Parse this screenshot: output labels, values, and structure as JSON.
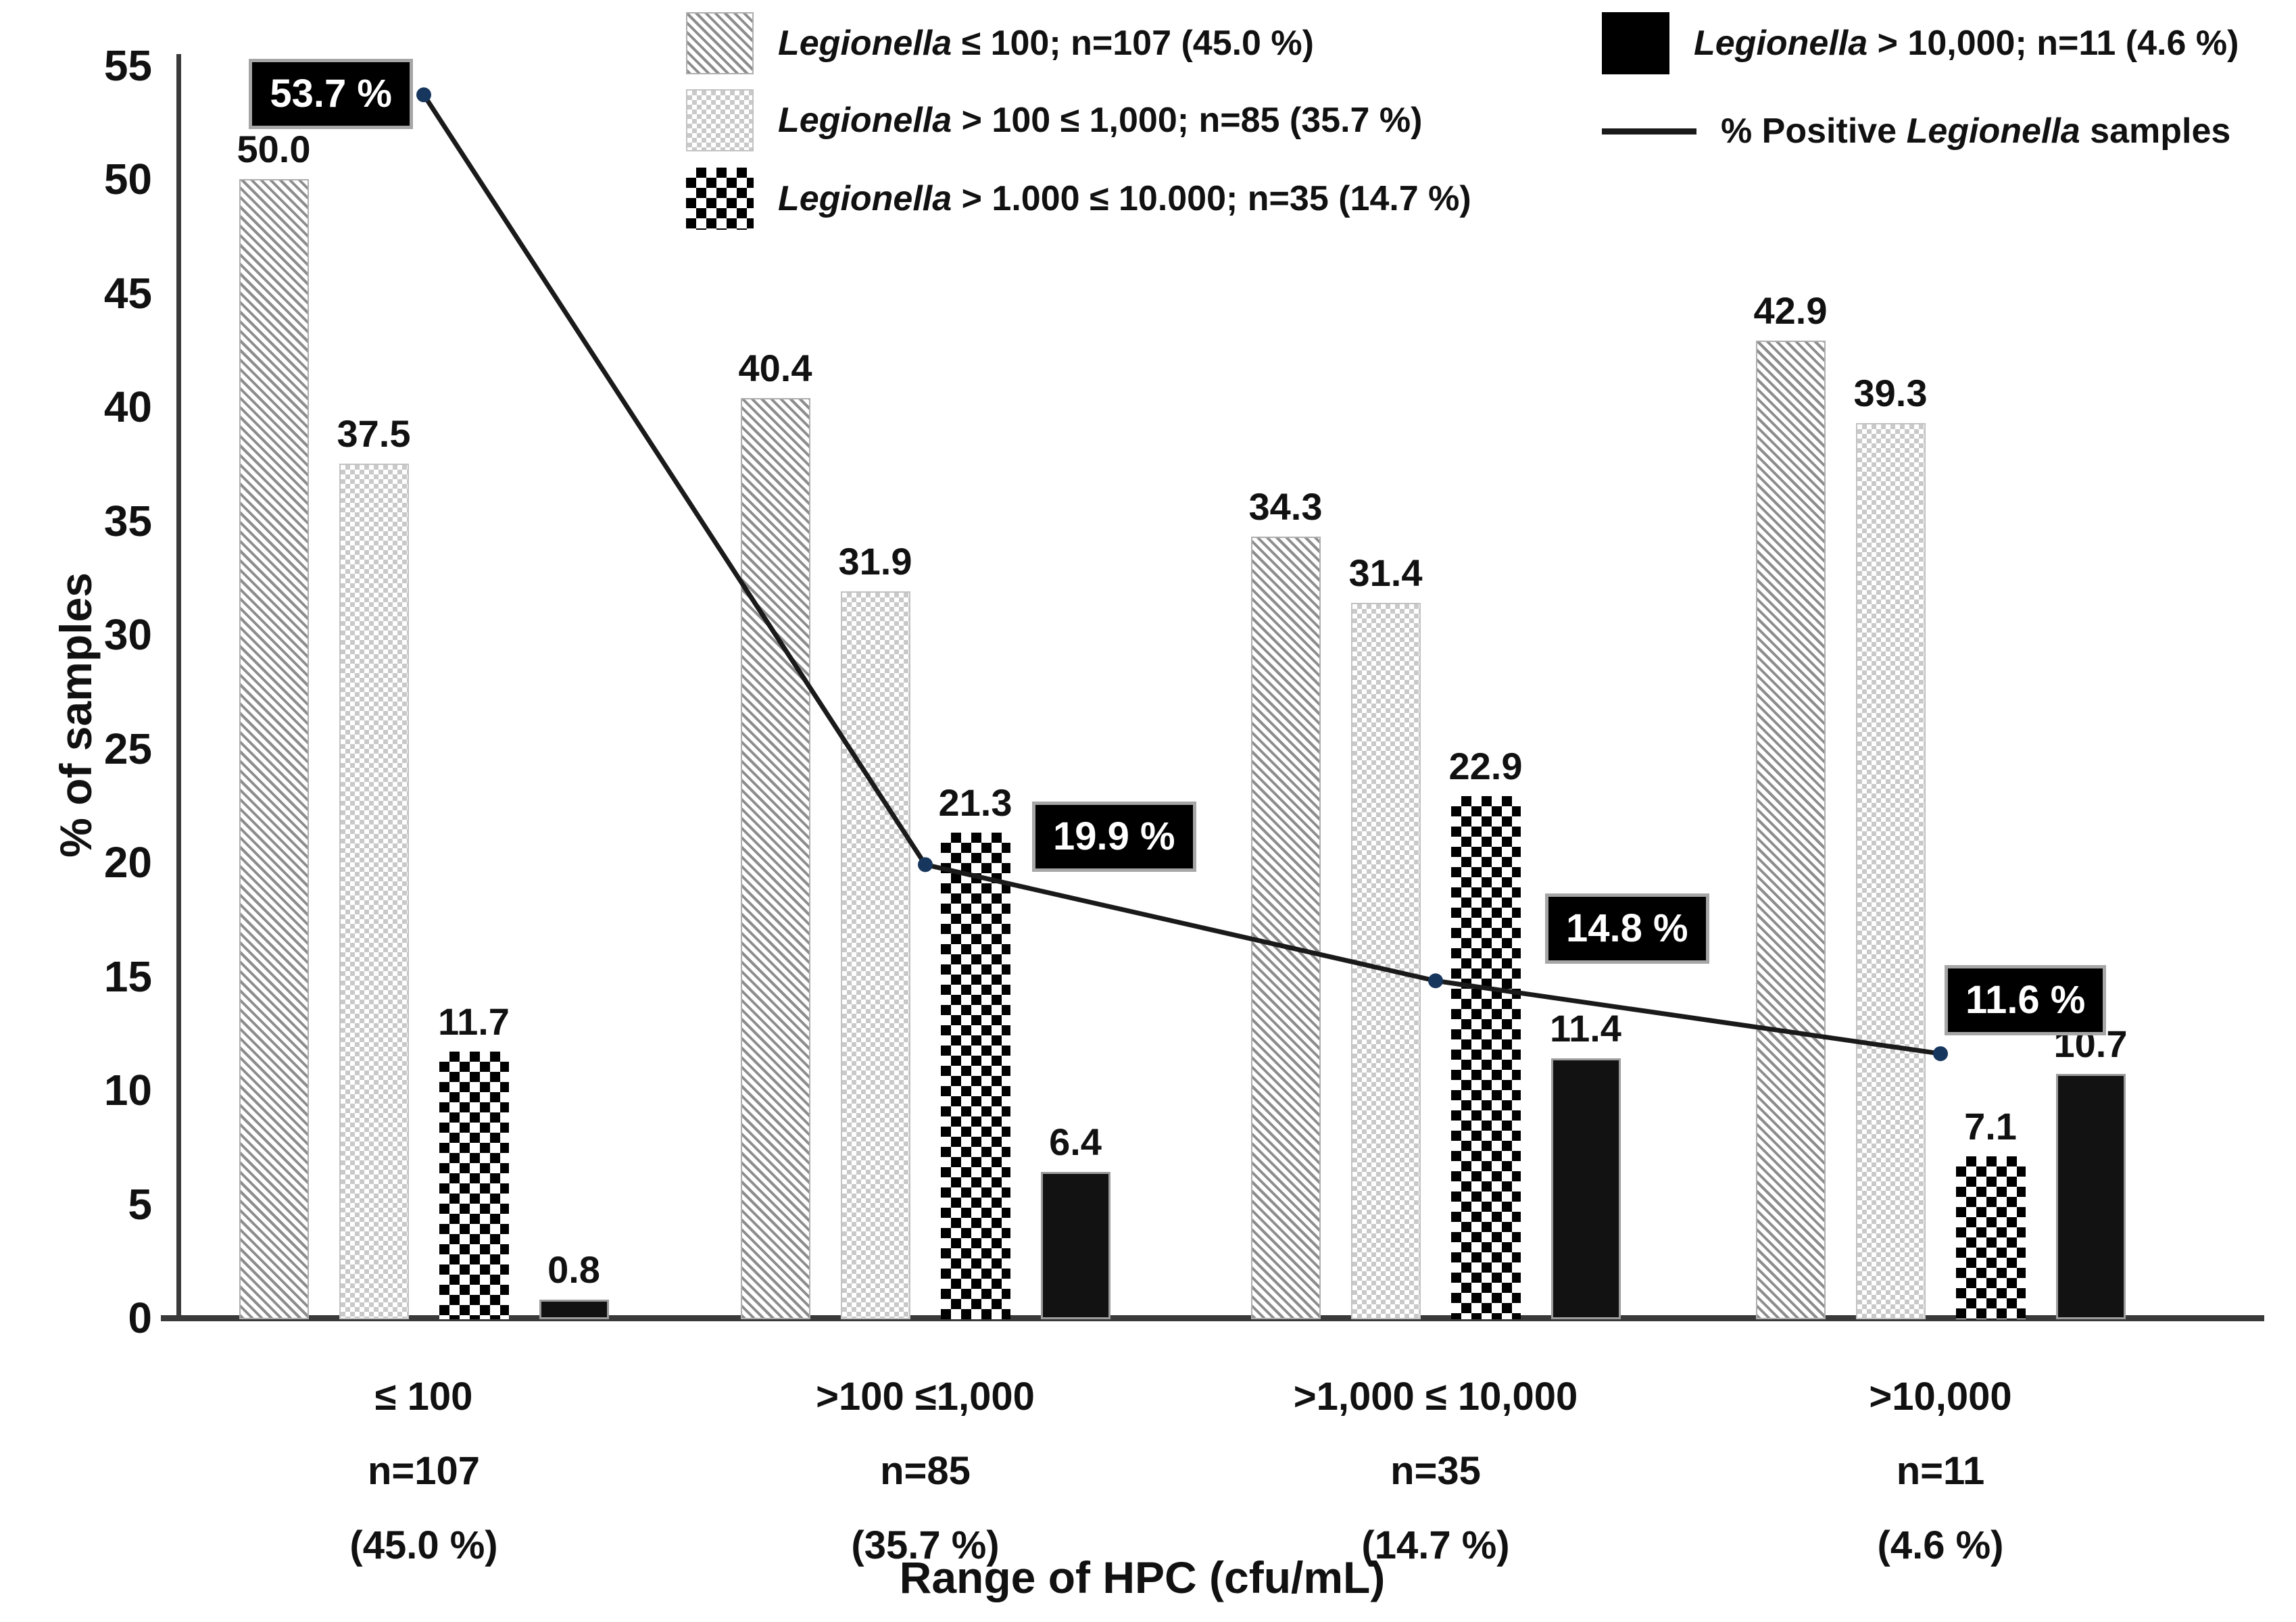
{
  "chart_data": {
    "type": "bar+line",
    "title": "",
    "ylabel": "% of samples",
    "xlabel": "Range of HPC (cfu/mL)",
    "ylim": [
      0,
      55
    ],
    "yticks": [
      0,
      5,
      10,
      15,
      20,
      25,
      30,
      35,
      40,
      45,
      50,
      55
    ],
    "grid": false,
    "legend_position": "top",
    "categories": [
      {
        "range": "≤ 100",
        "n": "n=107",
        "pct": "(45.0 %)"
      },
      {
        "range": ">100 ≤1,000",
        "n": "n=85",
        "pct": "(35.7 %)"
      },
      {
        "range": ">1,000 ≤ 10,000",
        "n": "n=35",
        "pct": "(14.7 %)"
      },
      {
        "range": ">10,000",
        "n": "n=11",
        "pct": "(4.6 %)"
      }
    ],
    "series": [
      {
        "name": "Legionella ≤ 100; n=107 (45.0 %)",
        "pattern": "diagonal-hatch",
        "fg_color": "#8d8d8d",
        "values": [
          50.0,
          40.4,
          34.3,
          42.9
        ],
        "value_labels": [
          "50.0",
          "40.4",
          "34.3",
          "42.9"
        ]
      },
      {
        "name": "Legionella > 100 ≤ 1,000; n=85 (35.7 %)",
        "pattern": "light-dot",
        "fg_color": "#c9c9c9",
        "values": [
          37.5,
          31.9,
          31.4,
          39.3
        ],
        "value_labels": [
          "37.5",
          "31.9",
          "31.4",
          "39.3"
        ]
      },
      {
        "name": "Legionella > 1.000 ≤ 10.000; n=35 (14.7 %)",
        "pattern": "checkerboard",
        "fg_color": "#000000",
        "values": [
          11.7,
          21.3,
          22.9,
          7.1
        ],
        "value_labels": [
          "11.7",
          "21.3",
          "22.9",
          "7.1"
        ]
      },
      {
        "name": "Legionella > 10,000; n=11 (4.6 %)",
        "pattern": "solid-black",
        "fg_color": "#121212",
        "values": [
          0.8,
          6.4,
          11.4,
          10.7
        ],
        "value_labels": [
          "0.8",
          "6.4",
          "11.4",
          "10.7"
        ]
      }
    ],
    "line_series": {
      "name": "% Positive Legionella samples",
      "values": [
        53.7,
        19.9,
        14.8,
        11.6
      ],
      "value_labels": [
        "53.7 %",
        "19.9 %",
        "14.8 %",
        "11.6 %"
      ],
      "line_color": "#1a1a1a",
      "marker_color": "#17365d",
      "callout_bg": "#000000",
      "callout_text_color": "#ffffff"
    },
    "legend_items": [
      {
        "swatch": "diagonal-hatch",
        "column": "left",
        "runs": [
          {
            "t": "Legionella",
            "i": true
          },
          {
            "t": " ≤ 100; n=107 (45.0 %)",
            "i": false
          }
        ]
      },
      {
        "swatch": "light-dot",
        "column": "left",
        "runs": [
          {
            "t": "Legionella",
            "i": true
          },
          {
            "t": " > 100 ≤ 1,000; n=85 (35.7 %)",
            "i": false
          }
        ]
      },
      {
        "swatch": "checkerboard",
        "column": "left",
        "runs": [
          {
            "t": "Legionella",
            "i": true
          },
          {
            "t": " > 1.000 ≤ 10.000; n=35 (14.7 %)",
            "i": false
          }
        ]
      },
      {
        "swatch": "solid-black",
        "column": "right",
        "runs": [
          {
            "t": "Legionella",
            "i": true
          },
          {
            "t": " > 10,000; n=11 (4.6 %)",
            "i": false
          }
        ]
      },
      {
        "swatch": "line",
        "column": "right",
        "runs": [
          {
            "t": "% Positive ",
            "i": false
          },
          {
            "t": "Legionella",
            "i": true
          },
          {
            "t": " samples",
            "i": false
          }
        ]
      }
    ]
  }
}
